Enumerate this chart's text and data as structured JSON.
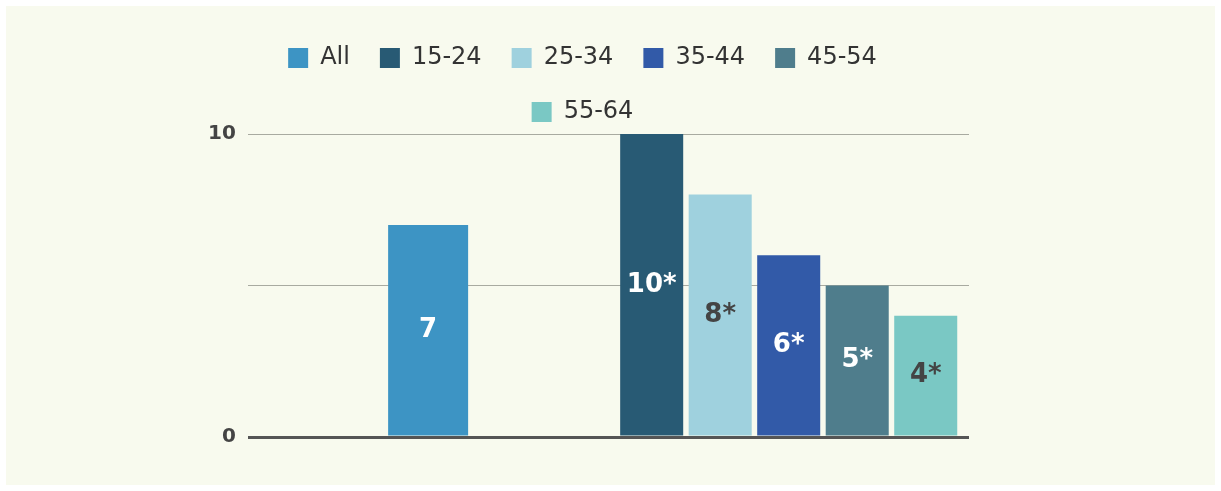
{
  "chart_data": {
    "type": "bar",
    "categories": [
      null,
      null
    ],
    "series": [
      {
        "name": "All",
        "color": "#3d94c4",
        "values": [
          7,
          null
        ],
        "value_labels": [
          "7",
          null
        ]
      },
      {
        "name": "15-24",
        "color": "#285a74",
        "values": [
          null,
          10
        ],
        "value_labels": [
          null,
          "10*"
        ]
      },
      {
        "name": "25-34",
        "color": "#9fd1de",
        "values": [
          null,
          8
        ],
        "value_labels": [
          null,
          "8*"
        ]
      },
      {
        "name": "35-44",
        "color": "#325aa8",
        "values": [
          null,
          6
        ],
        "value_labels": [
          null,
          "6*"
        ]
      },
      {
        "name": "45-54",
        "color": "#4f7d8c",
        "values": [
          null,
          5
        ],
        "value_labels": [
          null,
          "5*"
        ]
      },
      {
        "name": "55-64",
        "color": "#7ac8c4",
        "values": [
          null,
          4
        ],
        "value_labels": [
          null,
          "4*"
        ]
      }
    ],
    "ylim": [
      0,
      10
    ],
    "yticks": [
      0,
      {
        "value": 5,
        "label": null
      },
      10
    ],
    "grid": "y",
    "legend": "top"
  }
}
